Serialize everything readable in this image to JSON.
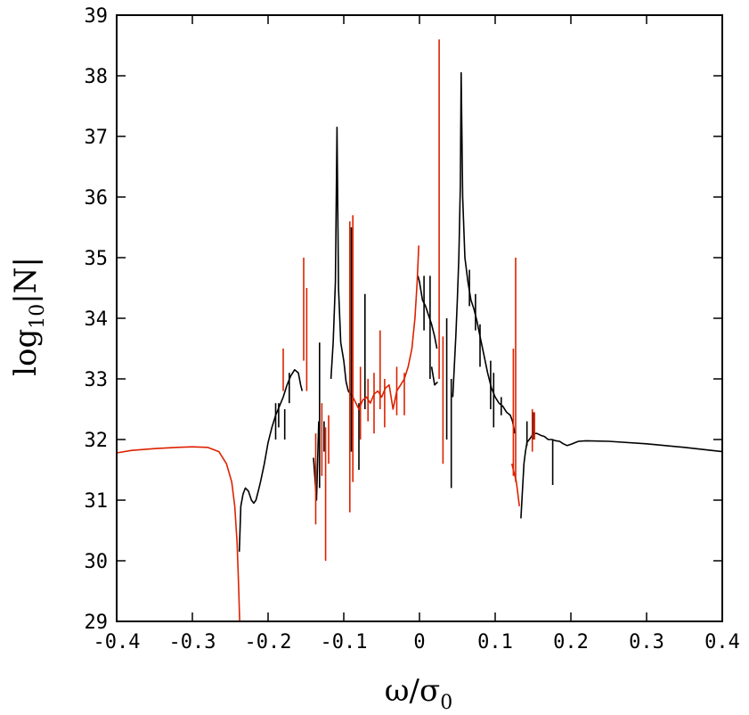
{
  "chart_data": {
    "type": "line",
    "xlabel": {
      "main": "ω/σ",
      "sub": "0"
    },
    "ylabel": {
      "main": "log",
      "sub": "10",
      "tail": "|N|"
    },
    "xlim": [
      -0.4,
      0.4
    ],
    "ylim": [
      29,
      39
    ],
    "xticks": [
      "-0.4",
      "-0.3",
      "-0.2",
      "-0.1",
      "0",
      "0.1",
      "0.2",
      "0.3",
      "0.4"
    ],
    "yticks": [
      "29",
      "30",
      "31",
      "32",
      "33",
      "34",
      "35",
      "36",
      "37",
      "38",
      "39"
    ],
    "colors": {
      "black": "#000000",
      "red": "#dd2200"
    },
    "series": [
      {
        "color": "#000000",
        "segments": [
          {
            "x": [
              -0.238,
              -0.236,
              -0.233,
              -0.23,
              -0.226,
              -0.222,
              -0.219,
              -0.216,
              -0.213,
              -0.21,
              -0.205,
              -0.2,
              -0.195,
              -0.19,
              -0.185,
              -0.18,
              -0.175,
              -0.17,
              -0.165,
              -0.16,
              -0.157,
              -0.155
            ],
            "y": [
              30.15,
              30.9,
              31.1,
              31.2,
              31.15,
              31.0,
              30.95,
              31.0,
              31.15,
              31.3,
              31.6,
              31.95,
              32.2,
              32.4,
              32.55,
              32.7,
              32.9,
              33.05,
              33.15,
              33.1,
              32.9,
              32.8
            ]
          },
          {
            "x": [
              -0.19,
              -0.19
            ],
            "y": [
              32.0,
              32.6
            ]
          },
          {
            "x": [
              -0.186,
              -0.186
            ],
            "y": [
              32.2,
              32.6
            ]
          },
          {
            "x": [
              -0.178,
              -0.178
            ],
            "y": [
              32.0,
              32.5
            ]
          },
          {
            "x": [
              -0.172,
              -0.172
            ],
            "y": [
              32.6,
              33.1
            ]
          },
          {
            "x": [
              -0.14,
              -0.136,
              -0.133
            ],
            "y": [
              31.7,
              31.0,
              32.3
            ]
          },
          {
            "x": [
              -0.132,
              -0.132
            ],
            "y": [
              31.2,
              33.6
            ]
          },
          {
            "x": [
              -0.126,
              -0.126
            ],
            "y": [
              31.8,
              32.3
            ]
          },
          {
            "x": [
              -0.117,
              -0.114,
              -0.111,
              -0.109,
              -0.107,
              -0.104,
              -0.1,
              -0.097,
              -0.094,
              -0.091,
              -0.089
            ],
            "y": [
              33.0,
              33.6,
              34.6,
              37.15,
              34.5,
              33.6,
              33.3,
              32.95,
              32.8,
              32.75,
              32.7
            ]
          },
          {
            "x": [
              -0.09,
              -0.09
            ],
            "y": [
              31.8,
              35.5
            ]
          },
          {
            "x": [
              -0.08,
              -0.08
            ],
            "y": [
              31.5,
              32.6
            ]
          },
          {
            "x": [
              -0.072,
              -0.072
            ],
            "y": [
              32.5,
              34.4
            ]
          },
          {
            "x": [
              -0.002,
              0.0,
              0.004,
              0.008,
              0.012,
              0.016,
              0.02,
              0.023
            ],
            "y": [
              34.7,
              34.6,
              34.3,
              34.2,
              34.05,
              33.9,
              33.7,
              33.5
            ]
          },
          {
            "x": [
              0.006,
              0.006
            ],
            "y": [
              33.8,
              34.7
            ]
          },
          {
            "x": [
              0.014,
              0.014
            ],
            "y": [
              33.0,
              34.7
            ]
          },
          {
            "x": [
              0.016,
              0.02,
              0.024
            ],
            "y": [
              33.2,
              32.9,
              32.95
            ]
          },
          {
            "x": [
              0.036,
              0.036
            ],
            "y": [
              32.0,
              34.0
            ]
          },
          {
            "x": [
              0.042,
              0.042
            ],
            "y": [
              31.2,
              33.0
            ]
          },
          {
            "x": [
              0.044,
              0.046,
              0.048,
              0.05,
              0.052,
              0.054,
              0.055,
              0.057,
              0.06,
              0.064,
              0.068,
              0.072,
              0.076,
              0.08,
              0.085,
              0.09,
              0.095,
              0.1,
              0.105,
              0.11,
              0.115,
              0.12,
              0.123,
              0.126
            ],
            "y": [
              32.7,
              33.2,
              33.7,
              34.3,
              35.0,
              36.2,
              38.05,
              36.0,
              35.0,
              34.6,
              34.3,
              34.15,
              33.95,
              33.7,
              33.4,
              33.1,
              32.85,
              32.7,
              32.6,
              32.55,
              32.45,
              32.4,
              32.3,
              32.1
            ]
          },
          {
            "x": [
              0.066,
              0.066
            ],
            "y": [
              34.2,
              34.8
            ]
          },
          {
            "x": [
              0.074,
              0.074
            ],
            "y": [
              33.8,
              34.4
            ]
          },
          {
            "x": [
              0.08,
              0.08
            ],
            "y": [
              33.2,
              33.9
            ]
          },
          {
            "x": [
              0.094,
              0.094
            ],
            "y": [
              32.5,
              33.3
            ]
          },
          {
            "x": [
              0.098,
              0.098
            ],
            "y": [
              32.2,
              33.1
            ]
          },
          {
            "x": [
              0.108,
              0.108
            ],
            "y": [
              32.4,
              32.7
            ]
          },
          {
            "x": [
              0.134,
              0.138,
              0.14,
              0.142,
              0.145,
              0.148,
              0.15,
              0.155,
              0.16,
              0.165,
              0.17,
              0.175,
              0.18,
              0.185,
              0.19,
              0.195,
              0.2,
              0.21,
              0.22,
              0.25,
              0.3,
              0.35,
              0.4
            ],
            "y": [
              30.7,
              31.6,
              31.8,
              31.95,
              32.0,
              32.05,
              32.1,
              32.1,
              32.07,
              32.05,
              32.0,
              32.0,
              31.98,
              31.97,
              31.93,
              31.9,
              31.92,
              31.97,
              31.98,
              31.97,
              31.93,
              31.87,
              31.8
            ]
          },
          {
            "x": [
              0.142,
              0.142
            ],
            "y": [
              31.9,
              32.3
            ]
          },
          {
            "x": [
              0.15,
              0.15
            ],
            "y": [
              32.0,
              32.45
            ]
          },
          {
            "x": [
              0.176,
              0.176
            ],
            "y": [
              31.25,
              32.0
            ]
          }
        ]
      },
      {
        "color": "#dd2200",
        "segments": [
          {
            "x": [
              -0.4,
              -0.38,
              -0.35,
              -0.32,
              -0.3,
              -0.28,
              -0.265,
              -0.255,
              -0.248,
              -0.244,
              -0.241,
              -0.239,
              -0.238,
              -0.2375
            ],
            "y": [
              31.78,
              31.82,
              31.85,
              31.87,
              31.88,
              31.87,
              31.8,
              31.6,
              31.3,
              30.9,
              30.3,
              29.6,
              29.2,
              29.0
            ]
          },
          {
            "x": [
              -0.18,
              -0.18
            ],
            "y": [
              32.8,
              33.5
            ]
          },
          {
            "x": [
              -0.153,
              -0.153
            ],
            "y": [
              33.3,
              35.0
            ]
          },
          {
            "x": [
              -0.149,
              -0.149
            ],
            "y": [
              32.8,
              34.5
            ]
          },
          {
            "x": [
              -0.137,
              -0.137
            ],
            "y": [
              30.6,
              32.1
            ]
          },
          {
            "x": [
              -0.129,
              -0.129
            ],
            "y": [
              31.4,
              32.6
            ]
          },
          {
            "x": [
              -0.124,
              -0.124
            ],
            "y": [
              30.0,
              32.2
            ]
          },
          {
            "x": [
              -0.12,
              -0.12
            ],
            "y": [
              31.6,
              32.4
            ]
          },
          {
            "x": [
              -0.092,
              -0.092
            ],
            "y": [
              30.8,
              35.6
            ]
          },
          {
            "x": [
              -0.088,
              -0.088
            ],
            "y": [
              31.3,
              35.7
            ]
          },
          {
            "x": [
              -0.088,
              -0.084,
              -0.08,
              -0.075,
              -0.07,
              -0.065,
              -0.06,
              -0.055,
              -0.05,
              -0.045,
              -0.04,
              -0.035,
              -0.03,
              -0.025,
              -0.02,
              -0.015,
              -0.01,
              -0.006,
              -0.003,
              -0.001
            ],
            "y": [
              32.7,
              32.6,
              32.5,
              32.65,
              32.7,
              32.6,
              32.75,
              32.8,
              32.7,
              32.85,
              32.9,
              32.5,
              32.8,
              32.9,
              33.0,
              33.2,
              33.5,
              34.0,
              34.6,
              35.2
            ]
          },
          {
            "x": [
              -0.078,
              -0.078
            ],
            "y": [
              32.0,
              33.2
            ]
          },
          {
            "x": [
              -0.068,
              -0.068
            ],
            "y": [
              32.3,
              33.0
            ]
          },
          {
            "x": [
              -0.06,
              -0.06
            ],
            "y": [
              32.1,
              33.1
            ]
          },
          {
            "x": [
              -0.052,
              -0.052
            ],
            "y": [
              32.5,
              33.8
            ]
          },
          {
            "x": [
              -0.046,
              -0.046
            ],
            "y": [
              32.2,
              33.0
            ]
          },
          {
            "x": [
              -0.03,
              -0.03
            ],
            "y": [
              32.4,
              33.2
            ]
          },
          {
            "x": [
              -0.02,
              -0.02
            ],
            "y": [
              32.4,
              33.1
            ]
          },
          {
            "x": [
              0.026,
              0.026
            ],
            "y": [
              33.0,
              38.6
            ]
          },
          {
            "x": [
              0.031,
              0.031
            ],
            "y": [
              31.6,
              33.7
            ]
          },
          {
            "x": [
              0.122,
              0.124,
              0.126,
              0.128,
              0.13,
              0.132
            ],
            "y": [
              31.6,
              31.5,
              31.4,
              31.3,
              31.1,
              30.9
            ]
          },
          {
            "x": [
              0.124,
              0.124
            ],
            "y": [
              31.4,
              33.5
            ]
          },
          {
            "x": [
              0.127,
              0.127
            ],
            "y": [
              31.3,
              35.0
            ]
          },
          {
            "x": [
              0.149,
              0.149
            ],
            "y": [
              31.8,
              32.5
            ]
          },
          {
            "x": [
              0.152,
              0.152
            ],
            "y": [
              32.0,
              32.45
            ]
          }
        ]
      }
    ]
  }
}
